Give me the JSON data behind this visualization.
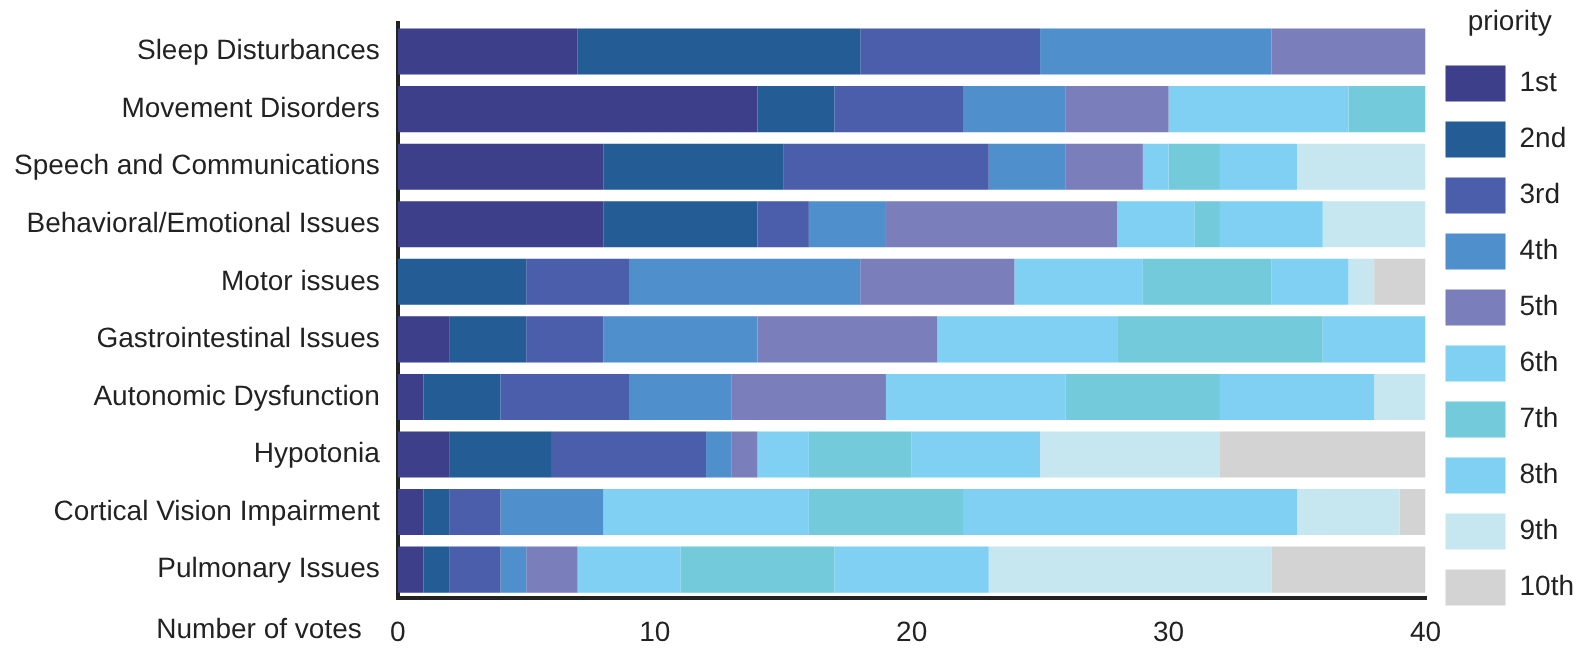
{
  "chart_data": {
    "type": "bar",
    "orientation": "horizontal",
    "stacked": true,
    "xlabel": "Number of votes",
    "legend_title": "priority",
    "legend": "right",
    "grid": false,
    "categories": [
      "Sleep Disturbances",
      "Movement Disorders",
      "Speech and Communications",
      "Behavioral/Emotional Issues",
      "Motor issues",
      "Gastrointestinal Issues",
      "Autonomic Dysfunction",
      "Hypotonia",
      "Cortical Vision Impairment",
      "Pulmonary Issues"
    ],
    "xlim": [
      0,
      40
    ],
    "xticks": [
      0,
      10,
      20,
      30,
      40
    ],
    "series": [
      {
        "name": "1st",
        "color": "#3d3f8a",
        "values": [
          7,
          14,
          8,
          8,
          0,
          2,
          1,
          2,
          1,
          1
        ]
      },
      {
        "name": "2nd",
        "color": "#245d96",
        "values": [
          11,
          3,
          7,
          6,
          5,
          3,
          3,
          4,
          1,
          1
        ]
      },
      {
        "name": "3rd",
        "color": "#4a5eab",
        "values": [
          7,
          5,
          8,
          2,
          4,
          3,
          5,
          6,
          2,
          2
        ]
      },
      {
        "name": "4th",
        "color": "#4f8fcb",
        "values": [
          9,
          4,
          3,
          3,
          9,
          6,
          4,
          1,
          4,
          1
        ]
      },
      {
        "name": "5th",
        "color": "#7a7ebb",
        "values": [
          6,
          4,
          3,
          9,
          6,
          7,
          6,
          1,
          0,
          2
        ]
      },
      {
        "name": "6th",
        "color": "#7fd0f2",
        "values": [
          0,
          7,
          1,
          3,
          5,
          7,
          7,
          2,
          8,
          4
        ]
      },
      {
        "name": "7th",
        "color": "#72cadb",
        "values": [
          0,
          3,
          2,
          1,
          5,
          8,
          6,
          4,
          6,
          6
        ]
      },
      {
        "name": "8th",
        "color": "#7fd0f2",
        "values": [
          0,
          0,
          3,
          4,
          3,
          4,
          6,
          5,
          13,
          6
        ]
      },
      {
        "name": "9th",
        "color": "#c6e7f0",
        "values": [
          0,
          0,
          5,
          4,
          1,
          0,
          2,
          7,
          4,
          11
        ]
      },
      {
        "name": "10th",
        "color": "#d3d3d3",
        "values": [
          0,
          0,
          0,
          0,
          2,
          0,
          0,
          8,
          1,
          6
        ]
      }
    ]
  }
}
